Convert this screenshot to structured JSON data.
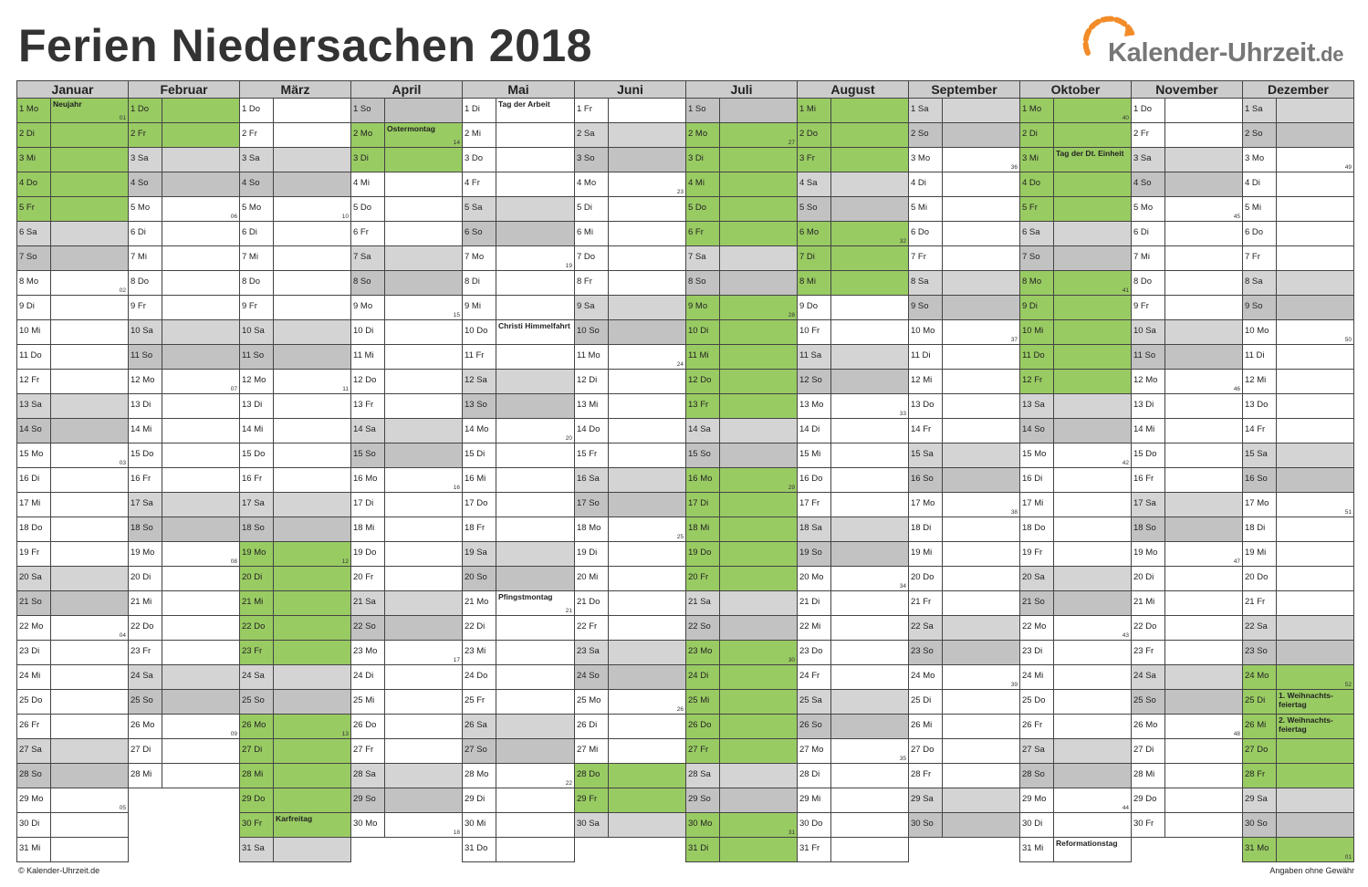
{
  "title": "Ferien Niedersachen 2018",
  "logo": {
    "name": "Kalender-Uhrzeit",
    "tld": ".de",
    "accent": "#f28c28"
  },
  "colors": {
    "ferien": "#99cb63",
    "weekend": "#d4d4d4",
    "sunday": "#c2c2c2",
    "header": "#cccccc"
  },
  "footer": {
    "left": "© Kalender-Uhrzeit.de",
    "right": "Angaben ohne Gewähr"
  },
  "months": [
    {
      "name": "Januar",
      "days": 31,
      "start": 1,
      "ferien": [
        1,
        2,
        3,
        4,
        5
      ],
      "holidays": {
        "1": "Neujahr"
      },
      "kw": {
        "1": "01",
        "8": "02",
        "15": "03",
        "22": "04",
        "29": "05"
      }
    },
    {
      "name": "Februar",
      "days": 28,
      "start": 4,
      "ferien": [
        1,
        2
      ],
      "holidays": {},
      "kw": {
        "5": "06",
        "12": "07",
        "19": "08",
        "26": "09"
      }
    },
    {
      "name": "März",
      "days": 31,
      "start": 4,
      "ferien": [
        19,
        20,
        21,
        22,
        23,
        26,
        27,
        28,
        29,
        30
      ],
      "holidays": {
        "30": "Karfreitag"
      },
      "kw": {
        "5": "10",
        "12": "11",
        "19": "12",
        "26": "13"
      }
    },
    {
      "name": "April",
      "days": 30,
      "start": 0,
      "ferien": [
        2,
        3
      ],
      "holidays": {
        "2": "Ostermontag"
      },
      "kw": {
        "2": "14",
        "9": "15",
        "16": "16",
        "23": "17",
        "30": "18"
      }
    },
    {
      "name": "Mai",
      "days": 31,
      "start": 2,
      "ferien": [],
      "holidays": {
        "1": "Tag der Arbeit",
        "10": "Christi Himmelfahrt",
        "21": "Pfingstmontag"
      },
      "kw": {
        "7": "19",
        "14": "20",
        "21": "21",
        "28": "22"
      }
    },
    {
      "name": "Juni",
      "days": 30,
      "start": 5,
      "ferien": [
        28,
        29
      ],
      "holidays": {},
      "kw": {
        "4": "23",
        "11": "24",
        "18": "25",
        "25": "26"
      }
    },
    {
      "name": "Juli",
      "days": 31,
      "start": 0,
      "ferien": [
        2,
        3,
        4,
        5,
        6,
        9,
        10,
        11,
        12,
        13,
        16,
        17,
        18,
        19,
        20,
        23,
        24,
        25,
        26,
        27,
        30,
        31
      ],
      "holidays": {},
      "kw": {
        "2": "27",
        "9": "28",
        "16": "29",
        "23": "30",
        "30": "31"
      }
    },
    {
      "name": "August",
      "days": 31,
      "start": 3,
      "ferien": [
        1,
        2,
        3,
        6,
        7,
        8
      ],
      "holidays": {},
      "kw": {
        "6": "32",
        "13": "33",
        "20": "34",
        "27": "35"
      }
    },
    {
      "name": "September",
      "days": 30,
      "start": 6,
      "ferien": [],
      "holidays": {},
      "kw": {
        "3": "36",
        "10": "37",
        "17": "38",
        "24": "39"
      }
    },
    {
      "name": "Oktober",
      "days": 31,
      "start": 1,
      "ferien": [
        1,
        2,
        3,
        4,
        5,
        8,
        9,
        10,
        11,
        12
      ],
      "holidays": {
        "3": "Tag der Dt. Einheit",
        "31": "Reformationstag"
      },
      "kw": {
        "1": "40",
        "8": "41",
        "15": "42",
        "22": "43",
        "29": "44"
      }
    },
    {
      "name": "November",
      "days": 30,
      "start": 4,
      "ferien": [],
      "holidays": {},
      "kw": {
        "5": "45",
        "12": "46",
        "19": "47",
        "26": "48"
      }
    },
    {
      "name": "Dezember",
      "days": 31,
      "start": 6,
      "ferien": [
        24,
        25,
        26,
        27,
        28,
        31
      ],
      "holidays": {
        "25": "1. Weihnachts-feiertag",
        "26": "2. Weihnachts-feiertag"
      },
      "kw": {
        "3": "49",
        "10": "50",
        "17": "51",
        "24": "52",
        "31": "01"
      }
    }
  ],
  "weekday_abbr": [
    "So",
    "Mo",
    "Di",
    "Mi",
    "Do",
    "Fr",
    "Sa"
  ]
}
